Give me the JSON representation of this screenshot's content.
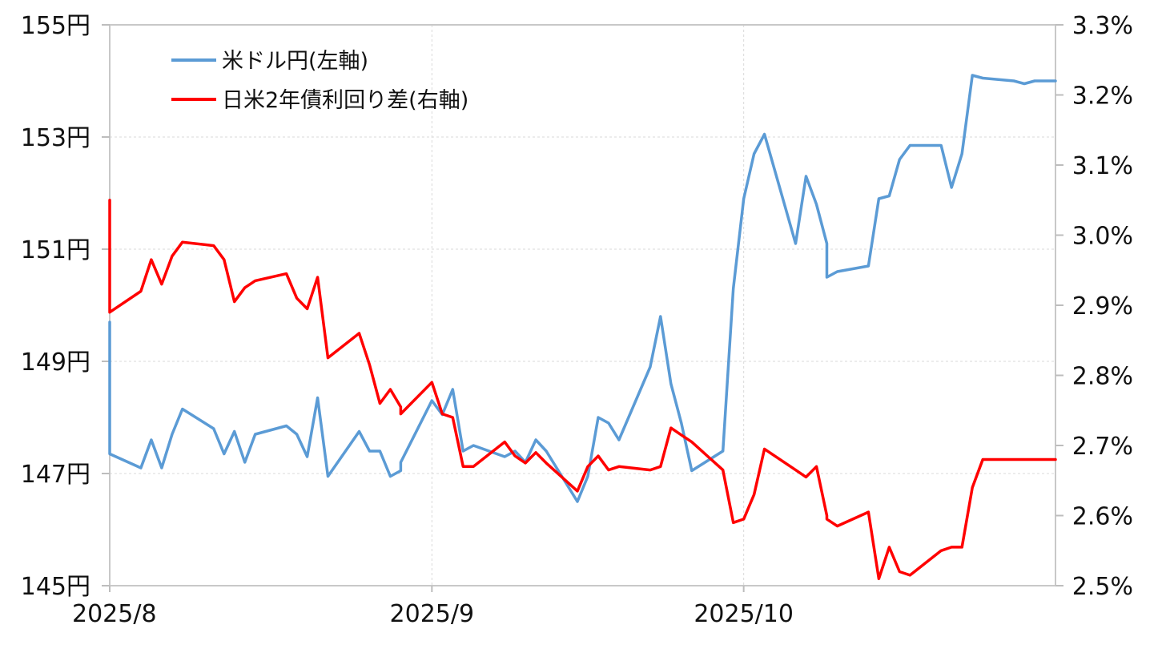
{
  "chart_data": {
    "type": "line",
    "title": "",
    "x_tick_labels": [
      "2025/8",
      "2025/9",
      "2025/10"
    ],
    "x_tick_dates": [
      "2025-08-01",
      "2025-09-01",
      "2025-10-01"
    ],
    "xlim": [
      "2025-08-01",
      "2025-10-31"
    ],
    "y_left": {
      "range": [
        145,
        155
      ],
      "ticks": [
        145,
        147,
        149,
        151,
        153,
        155
      ],
      "tick_labels": [
        "145円",
        "147円",
        "149円",
        "151円",
        "153円",
        "155円"
      ]
    },
    "y_right": {
      "range": [
        2.5,
        3.3
      ],
      "ticks": [
        2.5,
        2.6,
        2.7,
        2.8,
        2.9,
        3.0,
        3.1,
        3.2,
        3.3
      ],
      "tick_labels": [
        "2.5%",
        "2.6%",
        "2.7%",
        "2.8%",
        "2.9%",
        "3.0%",
        "3.1%",
        "3.2%",
        "3.3%"
      ]
    },
    "grid": true,
    "legend_position": "top-left",
    "series": [
      {
        "name": "米ドル円(左軸)",
        "axis": "left",
        "color": "#5b9bd5",
        "x": [
          "2025-08-01",
          "2025-08-01",
          "2025-08-04",
          "2025-08-05",
          "2025-08-06",
          "2025-08-07",
          "2025-08-08",
          "2025-08-11",
          "2025-08-12",
          "2025-08-13",
          "2025-08-14",
          "2025-08-15",
          "2025-08-18",
          "2025-08-19",
          "2025-08-20",
          "2025-08-21",
          "2025-08-22",
          "2025-08-25",
          "2025-08-26",
          "2025-08-27",
          "2025-08-28",
          "2025-08-29",
          "2025-08-29",
          "2025-09-01",
          "2025-09-02",
          "2025-09-03",
          "2025-09-04",
          "2025-09-05",
          "2025-09-08",
          "2025-09-09",
          "2025-09-10",
          "2025-09-11",
          "2025-09-12",
          "2025-09-15",
          "2025-09-16",
          "2025-09-17",
          "2025-09-18",
          "2025-09-19",
          "2025-09-22",
          "2025-09-23",
          "2025-09-24",
          "2025-09-25",
          "2025-09-26",
          "2025-09-29",
          "2025-09-30",
          "2025-10-01",
          "2025-10-02",
          "2025-10-03",
          "2025-10-06",
          "2025-10-07",
          "2025-10-08",
          "2025-10-09",
          "2025-10-09",
          "2025-10-10",
          "2025-10-13",
          "2025-10-14",
          "2025-10-15",
          "2025-10-16",
          "2025-10-17",
          "2025-10-20",
          "2025-10-21",
          "2025-10-22",
          "2025-10-23",
          "2025-10-24",
          "2025-10-27",
          "2025-10-28",
          "2025-10-29",
          "2025-10-30",
          "2025-10-31"
        ],
        "values": [
          149.7,
          147.35,
          147.1,
          147.6,
          147.1,
          147.7,
          148.15,
          147.8,
          147.35,
          147.75,
          147.2,
          147.7,
          147.85,
          147.7,
          147.3,
          148.35,
          146.95,
          147.75,
          147.4,
          147.4,
          146.95,
          147.05,
          147.2,
          148.3,
          148.05,
          148.5,
          147.4,
          147.5,
          147.3,
          147.4,
          147.2,
          147.6,
          147.4,
          146.5,
          146.95,
          148.0,
          147.9,
          147.6,
          148.9,
          149.8,
          148.6,
          147.9,
          147.05,
          147.4,
          150.3,
          151.9,
          152.7,
          153.05,
          151.1,
          152.3,
          151.8,
          151.1,
          150.5,
          150.6,
          150.7,
          151.9,
          151.95,
          152.6,
          152.85,
          152.85,
          152.1,
          152.7,
          154.1,
          154.05,
          154.0,
          153.95,
          154.0,
          154.0,
          154.0
        ]
      },
      {
        "name": "日米2年債利回り差(右軸)",
        "axis": "right",
        "color": "#ff0000",
        "x": [
          "2025-08-01",
          "2025-08-01",
          "2025-08-04",
          "2025-08-05",
          "2025-08-06",
          "2025-08-07",
          "2025-08-08",
          "2025-08-11",
          "2025-08-12",
          "2025-08-13",
          "2025-08-14",
          "2025-08-15",
          "2025-08-18",
          "2025-08-19",
          "2025-08-20",
          "2025-08-21",
          "2025-08-22",
          "2025-08-25",
          "2025-08-26",
          "2025-08-27",
          "2025-08-28",
          "2025-08-29",
          "2025-08-29",
          "2025-09-01",
          "2025-09-02",
          "2025-09-03",
          "2025-09-04",
          "2025-09-05",
          "2025-09-08",
          "2025-09-09",
          "2025-09-10",
          "2025-09-11",
          "2025-09-12",
          "2025-09-15",
          "2025-09-16",
          "2025-09-17",
          "2025-09-18",
          "2025-09-19",
          "2025-09-22",
          "2025-09-23",
          "2025-09-24",
          "2025-09-25",
          "2025-09-26",
          "2025-09-29",
          "2025-09-30",
          "2025-10-01",
          "2025-10-02",
          "2025-10-03",
          "2025-10-06",
          "2025-10-07",
          "2025-10-08",
          "2025-10-09",
          "2025-10-09",
          "2025-10-10",
          "2025-10-13",
          "2025-10-14",
          "2025-10-15",
          "2025-10-16",
          "2025-10-17",
          "2025-10-20",
          "2025-10-21",
          "2025-10-22",
          "2025-10-23",
          "2025-10-24",
          "2025-10-27",
          "2025-10-28",
          "2025-10-29",
          "2025-10-30",
          "2025-10-31"
        ],
        "values": [
          3.05,
          2.89,
          2.92,
          2.965,
          2.93,
          2.97,
          2.99,
          2.985,
          2.965,
          2.905,
          2.925,
          2.935,
          2.945,
          2.91,
          2.895,
          2.94,
          2.825,
          2.86,
          2.815,
          2.76,
          2.78,
          2.755,
          2.745,
          2.79,
          2.745,
          2.74,
          2.67,
          2.67,
          2.705,
          2.685,
          2.675,
          2.69,
          2.675,
          2.635,
          2.67,
          2.685,
          2.665,
          2.67,
          2.665,
          2.67,
          2.725,
          2.715,
          2.705,
          2.665,
          2.59,
          2.595,
          2.63,
          2.695,
          2.665,
          2.655,
          2.67,
          2.6,
          2.595,
          2.585,
          2.605,
          2.51,
          2.555,
          2.52,
          2.515,
          2.55,
          2.555,
          2.555,
          2.64,
          2.68,
          2.68,
          2.68,
          2.68,
          2.68,
          2.68
        ]
      }
    ]
  }
}
